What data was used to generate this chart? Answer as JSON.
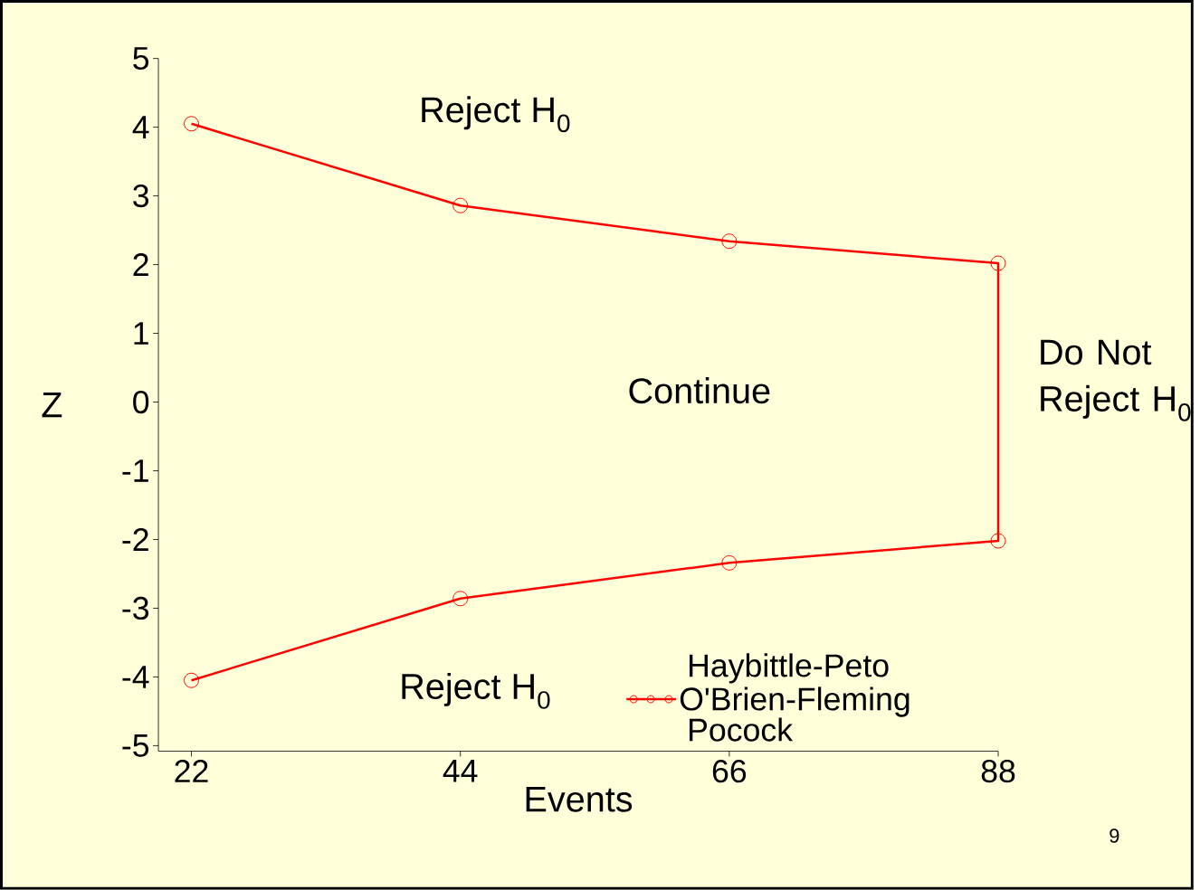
{
  "chart_data": {
    "type": "line",
    "xlabel": "Events",
    "ylabel": "Z",
    "x": [
      22,
      44,
      66,
      88,
      88,
      66,
      44,
      22
    ],
    "series": [
      {
        "name": "O'Brien-Fleming",
        "color": "#ff0000",
        "values": [
          4.05,
          2.86,
          2.34,
          2.02,
          -2.02,
          -2.34,
          -2.86,
          -4.05
        ]
      }
    ],
    "xlim": [
      19.3,
      88
    ],
    "xticks": [
      22,
      44,
      66,
      88
    ],
    "ylim": [
      -5.08,
      5
    ],
    "yticks": [
      -5,
      -4,
      -3,
      -2,
      -1,
      0,
      1,
      2,
      3,
      4,
      5
    ],
    "marker": "circle",
    "line_style": "solid",
    "legend": "bottom",
    "grid": false,
    "annotations": [
      "Reject H$_{0}$",
      "Continue",
      "Reject H$_{0}$",
      "Do Not Reject H$_{0}$",
      "9",
      "Haybittle-Peto",
      "Pocock"
    ]
  }
}
